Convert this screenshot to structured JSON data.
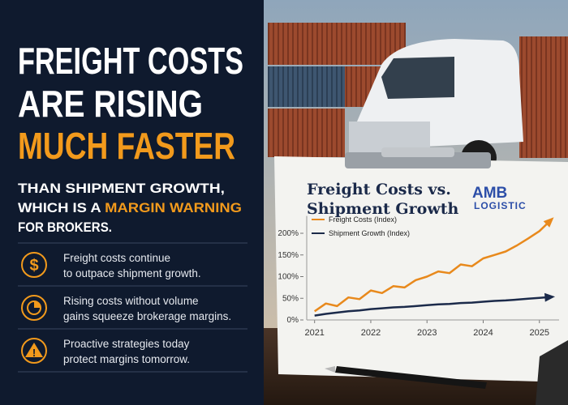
{
  "headline": {
    "line1": "FREIGHT COSTS",
    "line2": "ARE RISING",
    "line3": "MUCH FASTER"
  },
  "subtitle": {
    "line1": "THAN SHIPMENT GROWTH,",
    "line2": "WHICH IS A ",
    "highlight": "MARGIN WARNING",
    "line3": "FOR BROKERS."
  },
  "bullets": [
    {
      "icon": "$",
      "lines": [
        "Freight costs continue",
        "to outpace shipment growth."
      ]
    },
    {
      "lines": [
        "Rising costs without volume",
        "gains squeeze brokerage margins."
      ]
    },
    {
      "icon": "!",
      "lines": [
        "Proactive strategies today",
        "protect margins tomorrow."
      ]
    }
  ],
  "logo": {
    "mark": "AMB",
    "name": "LOGISTIC"
  },
  "chart_data": {
    "type": "line",
    "title": [
      "Freight Costs vs.",
      "Shipment Growth"
    ],
    "x": [
      2021,
      2021.2,
      2021.4,
      2021.6,
      2021.8,
      2022,
      2022.2,
      2022.4,
      2022.6,
      2022.8,
      2023,
      2023.2,
      2023.4,
      2023.6,
      2023.8,
      2024,
      2024.2,
      2024.4,
      2024.6,
      2024.8,
      2025,
      2025.2
    ],
    "series": [
      {
        "name": "Freight Costs (Index)",
        "color": "#e8891c",
        "values": [
          20,
          38,
          32,
          52,
          48,
          68,
          62,
          78,
          75,
          92,
          100,
          112,
          108,
          128,
          124,
          142,
          150,
          158,
          172,
          188,
          205,
          230
        ]
      },
      {
        "name": "Shipment Growth (Index)",
        "color": "#1b2a4a",
        "values": [
          10,
          14,
          17,
          20,
          22,
          25,
          27,
          29,
          30,
          32,
          34,
          36,
          37,
          39,
          40,
          42,
          44,
          45,
          47,
          49,
          51,
          53
        ]
      }
    ],
    "xlim": [
      2020.86,
      2025.35
    ],
    "ylim": [
      0,
      240
    ],
    "xticks": [
      2021,
      2022,
      2023,
      2024,
      2025
    ],
    "yticks": [
      {
        "value": 0,
        "label": "0%"
      },
      {
        "value": 50,
        "label": "50%"
      },
      {
        "value": 100,
        "label": "100%"
      },
      {
        "value": 150,
        "label": "150%"
      },
      {
        "value": 200,
        "label": "200%"
      }
    ]
  }
}
